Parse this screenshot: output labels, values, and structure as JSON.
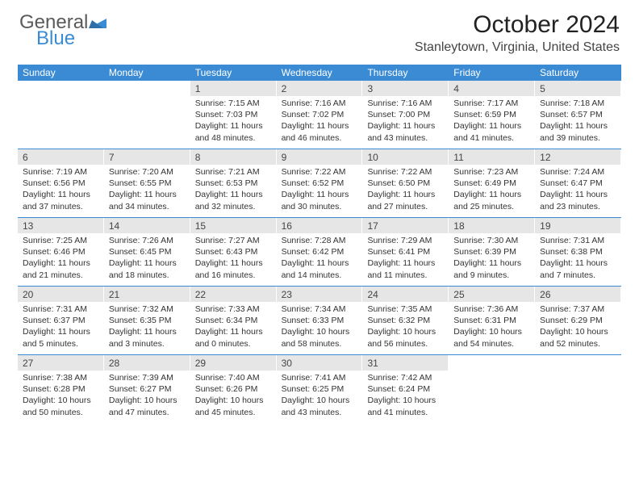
{
  "logo": {
    "part1": "General",
    "part2": "Blue"
  },
  "title": "October 2024",
  "location": "Stanleytown, Virginia, United States",
  "colors": {
    "header_bg": "#3b8bd4",
    "header_text": "#ffffff",
    "shaded_bg": "#e6e6e6",
    "divider": "#3b8bd4",
    "logo_gray": "#5a5a5a",
    "logo_blue": "#3b8bd4"
  },
  "day_names": [
    "Sunday",
    "Monday",
    "Tuesday",
    "Wednesday",
    "Thursday",
    "Friday",
    "Saturday"
  ],
  "weeks": [
    [
      null,
      null,
      {
        "n": 1,
        "sr": "7:15 AM",
        "ss": "7:03 PM",
        "dl": "11 hours and 48 minutes."
      },
      {
        "n": 2,
        "sr": "7:16 AM",
        "ss": "7:02 PM",
        "dl": "11 hours and 46 minutes."
      },
      {
        "n": 3,
        "sr": "7:16 AM",
        "ss": "7:00 PM",
        "dl": "11 hours and 43 minutes."
      },
      {
        "n": 4,
        "sr": "7:17 AM",
        "ss": "6:59 PM",
        "dl": "11 hours and 41 minutes."
      },
      {
        "n": 5,
        "sr": "7:18 AM",
        "ss": "6:57 PM",
        "dl": "11 hours and 39 minutes."
      }
    ],
    [
      {
        "n": 6,
        "sr": "7:19 AM",
        "ss": "6:56 PM",
        "dl": "11 hours and 37 minutes."
      },
      {
        "n": 7,
        "sr": "7:20 AM",
        "ss": "6:55 PM",
        "dl": "11 hours and 34 minutes."
      },
      {
        "n": 8,
        "sr": "7:21 AM",
        "ss": "6:53 PM",
        "dl": "11 hours and 32 minutes."
      },
      {
        "n": 9,
        "sr": "7:22 AM",
        "ss": "6:52 PM",
        "dl": "11 hours and 30 minutes."
      },
      {
        "n": 10,
        "sr": "7:22 AM",
        "ss": "6:50 PM",
        "dl": "11 hours and 27 minutes."
      },
      {
        "n": 11,
        "sr": "7:23 AM",
        "ss": "6:49 PM",
        "dl": "11 hours and 25 minutes."
      },
      {
        "n": 12,
        "sr": "7:24 AM",
        "ss": "6:47 PM",
        "dl": "11 hours and 23 minutes."
      }
    ],
    [
      {
        "n": 13,
        "sr": "7:25 AM",
        "ss": "6:46 PM",
        "dl": "11 hours and 21 minutes."
      },
      {
        "n": 14,
        "sr": "7:26 AM",
        "ss": "6:45 PM",
        "dl": "11 hours and 18 minutes."
      },
      {
        "n": 15,
        "sr": "7:27 AM",
        "ss": "6:43 PM",
        "dl": "11 hours and 16 minutes."
      },
      {
        "n": 16,
        "sr": "7:28 AM",
        "ss": "6:42 PM",
        "dl": "11 hours and 14 minutes."
      },
      {
        "n": 17,
        "sr": "7:29 AM",
        "ss": "6:41 PM",
        "dl": "11 hours and 11 minutes."
      },
      {
        "n": 18,
        "sr": "7:30 AM",
        "ss": "6:39 PM",
        "dl": "11 hours and 9 minutes."
      },
      {
        "n": 19,
        "sr": "7:31 AM",
        "ss": "6:38 PM",
        "dl": "11 hours and 7 minutes."
      }
    ],
    [
      {
        "n": 20,
        "sr": "7:31 AM",
        "ss": "6:37 PM",
        "dl": "11 hours and 5 minutes."
      },
      {
        "n": 21,
        "sr": "7:32 AM",
        "ss": "6:35 PM",
        "dl": "11 hours and 3 minutes."
      },
      {
        "n": 22,
        "sr": "7:33 AM",
        "ss": "6:34 PM",
        "dl": "11 hours and 0 minutes."
      },
      {
        "n": 23,
        "sr": "7:34 AM",
        "ss": "6:33 PM",
        "dl": "10 hours and 58 minutes."
      },
      {
        "n": 24,
        "sr": "7:35 AM",
        "ss": "6:32 PM",
        "dl": "10 hours and 56 minutes."
      },
      {
        "n": 25,
        "sr": "7:36 AM",
        "ss": "6:31 PM",
        "dl": "10 hours and 54 minutes."
      },
      {
        "n": 26,
        "sr": "7:37 AM",
        "ss": "6:29 PM",
        "dl": "10 hours and 52 minutes."
      }
    ],
    [
      {
        "n": 27,
        "sr": "7:38 AM",
        "ss": "6:28 PM",
        "dl": "10 hours and 50 minutes."
      },
      {
        "n": 28,
        "sr": "7:39 AM",
        "ss": "6:27 PM",
        "dl": "10 hours and 47 minutes."
      },
      {
        "n": 29,
        "sr": "7:40 AM",
        "ss": "6:26 PM",
        "dl": "10 hours and 45 minutes."
      },
      {
        "n": 30,
        "sr": "7:41 AM",
        "ss": "6:25 PM",
        "dl": "10 hours and 43 minutes."
      },
      {
        "n": 31,
        "sr": "7:42 AM",
        "ss": "6:24 PM",
        "dl": "10 hours and 41 minutes."
      },
      null,
      null
    ]
  ]
}
